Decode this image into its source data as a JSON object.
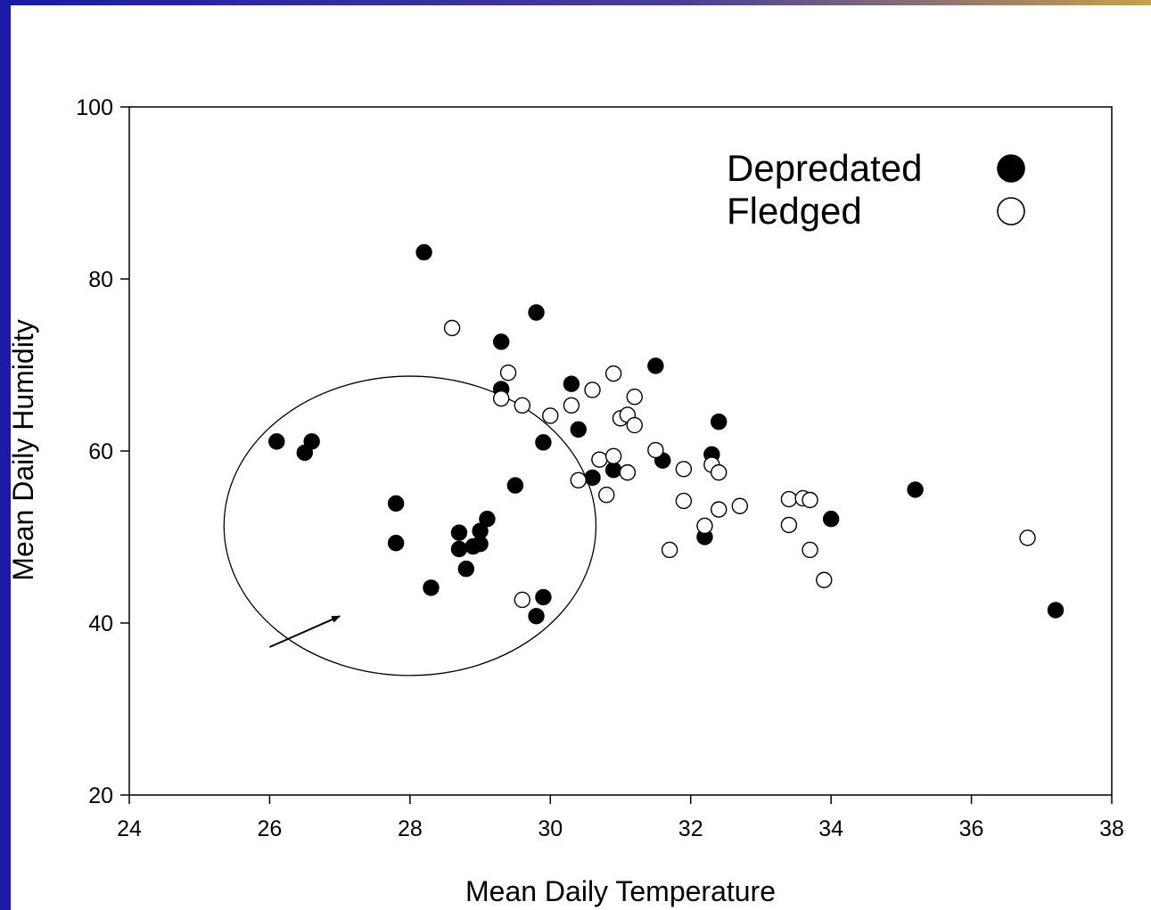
{
  "chart_data": {
    "type": "scatter",
    "title": "",
    "xlabel": "Mean Daily Temperature",
    "ylabel": "Mean Daily Humidity",
    "xlim": [
      24,
      38
    ],
    "ylim": [
      20,
      100
    ],
    "xticks": [
      24,
      26,
      28,
      30,
      32,
      34,
      36,
      38
    ],
    "yticks": [
      20,
      40,
      60,
      80,
      100
    ],
    "grid": false,
    "legend_position": "top-right",
    "series": [
      {
        "name": "Depredated",
        "marker": "filled-circle",
        "color": "#000000",
        "points": [
          [
            26.1,
            61.1
          ],
          [
            26.5,
            59.8
          ],
          [
            26.6,
            61.1
          ],
          [
            27.8,
            53.9
          ],
          [
            27.8,
            49.3
          ],
          [
            28.2,
            83.1
          ],
          [
            28.3,
            44.1
          ],
          [
            28.7,
            50.5
          ],
          [
            28.7,
            48.6
          ],
          [
            28.8,
            46.3
          ],
          [
            28.9,
            48.9
          ],
          [
            29.0,
            49.2
          ],
          [
            29.0,
            50.7
          ],
          [
            29.1,
            52.1
          ],
          [
            29.3,
            67.2
          ],
          [
            29.3,
            72.7
          ],
          [
            29.5,
            56.0
          ],
          [
            29.8,
            76.1
          ],
          [
            29.8,
            40.8
          ],
          [
            29.9,
            43.0
          ],
          [
            29.9,
            61.0
          ],
          [
            30.3,
            67.8
          ],
          [
            30.4,
            62.5
          ],
          [
            30.6,
            56.9
          ],
          [
            30.9,
            57.8
          ],
          [
            31.5,
            69.9
          ],
          [
            31.6,
            58.9
          ],
          [
            32.2,
            50.0
          ],
          [
            32.3,
            59.6
          ],
          [
            32.4,
            63.4
          ],
          [
            34.0,
            52.1
          ],
          [
            35.2,
            55.5
          ],
          [
            37.2,
            41.5
          ]
        ]
      },
      {
        "name": "Fledged",
        "marker": "open-circle",
        "color": "#000000",
        "points": [
          [
            28.6,
            74.3
          ],
          [
            29.3,
            66.1
          ],
          [
            29.4,
            69.1
          ],
          [
            29.6,
            65.3
          ],
          [
            29.6,
            42.7
          ],
          [
            30.0,
            64.1
          ],
          [
            30.3,
            65.3
          ],
          [
            30.4,
            56.6
          ],
          [
            30.6,
            67.1
          ],
          [
            30.7,
            59.0
          ],
          [
            30.8,
            54.9
          ],
          [
            30.9,
            69.0
          ],
          [
            30.9,
            59.4
          ],
          [
            31.0,
            63.8
          ],
          [
            31.1,
            64.2
          ],
          [
            31.1,
            57.5
          ],
          [
            31.2,
            66.3
          ],
          [
            31.2,
            63.0
          ],
          [
            31.5,
            60.1
          ],
          [
            31.7,
            48.5
          ],
          [
            31.9,
            57.9
          ],
          [
            31.9,
            54.2
          ],
          [
            32.2,
            51.3
          ],
          [
            32.3,
            58.4
          ],
          [
            32.4,
            57.5
          ],
          [
            32.4,
            53.2
          ],
          [
            32.7,
            53.6
          ],
          [
            33.4,
            51.4
          ],
          [
            33.4,
            54.4
          ],
          [
            33.6,
            54.5
          ],
          [
            33.7,
            54.3
          ],
          [
            33.7,
            48.5
          ],
          [
            33.9,
            45.0
          ],
          [
            36.8,
            49.9
          ]
        ]
      }
    ],
    "annotations": [
      {
        "type": "ellipse",
        "center": [
          28.0,
          51.3
        ],
        "radius_x": 2.65,
        "radius_y": 17.4
      },
      {
        "type": "arrow",
        "from": [
          26.0,
          37.2
        ],
        "to": [
          27.0,
          40.8
        ]
      }
    ]
  }
}
